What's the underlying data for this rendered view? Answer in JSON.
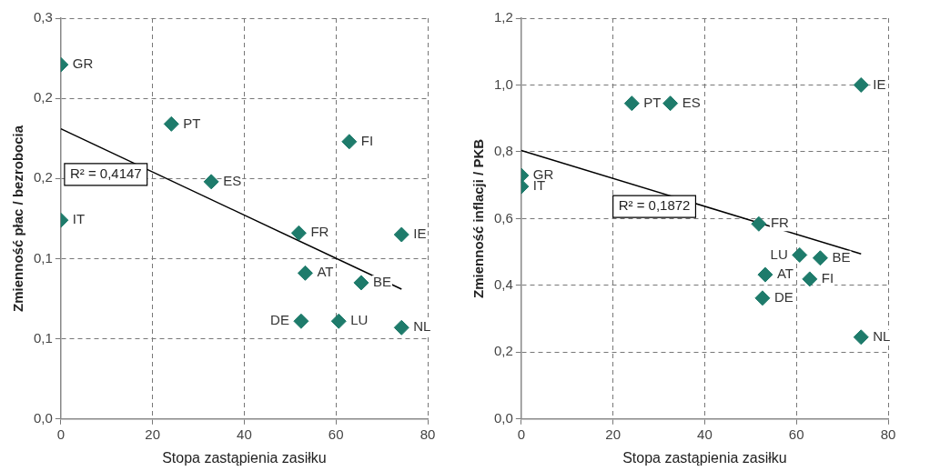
{
  "chart_data": [
    {
      "type": "scatter",
      "xlabel": "Stopa zastąpienia zasiłku",
      "ylabel": "Zmienność płac / bezrobocia",
      "xlim": [
        0,
        80
      ],
      "xticks": [
        0,
        20,
        40,
        60,
        80
      ],
      "ylim": [
        0,
        0.25
      ],
      "yticks": [
        {
          "value": 0,
          "label": "0,0"
        },
        {
          "value": 0.05,
          "label": "0,1"
        },
        {
          "value": 0.1,
          "label": "0,1"
        },
        {
          "value": 0.15,
          "label": "0,2"
        },
        {
          "value": 0.2,
          "label": "0,2"
        },
        {
          "value": 0.25,
          "label": "0,3"
        }
      ],
      "grid": true,
      "series": [
        {
          "marker": "diamond",
          "color": "#1e7b6b",
          "x": [
            0,
            24.1,
            62.9,
            32.8,
            0,
            51.9,
            74.3,
            53.3,
            65.5,
            52.4,
            60.6,
            74.3
          ],
          "values": [
            0.221,
            0.184,
            0.173,
            0.148,
            0.124,
            0.116,
            0.115,
            0.091,
            0.085,
            0.061,
            0.061,
            0.057
          ]
        },
        {
          "type": "line",
          "color": "#000000",
          "x": [
            0,
            74.3
          ],
          "values": [
            0.181,
            0.081
          ]
        }
      ],
      "annotations": [
        {
          "text": "GR",
          "x": 0,
          "y": 0.221
        },
        {
          "text": "PT",
          "x": 24.1,
          "y": 0.184
        },
        {
          "text": "FI",
          "x": 62.9,
          "y": 0.173
        },
        {
          "text": "ES",
          "x": 32.8,
          "y": 0.148
        },
        {
          "text": "IT",
          "x": 0,
          "y": 0.124
        },
        {
          "text": "FR",
          "x": 51.9,
          "y": 0.116
        },
        {
          "text": "IE",
          "x": 74.3,
          "y": 0.115
        },
        {
          "text": "AT",
          "x": 53.3,
          "y": 0.091
        },
        {
          "text": "BE",
          "x": 65.5,
          "y": 0.085
        },
        {
          "text": "DE",
          "x": 52.4,
          "y": 0.061
        },
        {
          "text": "LU",
          "x": 60.6,
          "y": 0.061
        },
        {
          "text": "NL",
          "x": 74.3,
          "y": 0.057
        },
        "R² = 0,4147"
      ]
    },
    {
      "type": "scatter",
      "xlabel": "Stopa zastąpienia zasiłku",
      "ylabel": "Zmienność inflacji / PKB",
      "xlim": [
        0,
        80
      ],
      "xticks": [
        0,
        20,
        40,
        60,
        80
      ],
      "ylim": [
        0,
        1.2
      ],
      "yticks": [
        {
          "value": 0,
          "label": "0,0"
        },
        {
          "value": 0.2,
          "label": "0,2"
        },
        {
          "value": 0.4,
          "label": "0,4"
        },
        {
          "value": 0.6,
          "label": "0,6"
        },
        {
          "value": 0.8,
          "label": "0,8"
        },
        {
          "value": 1,
          "label": "1,0"
        },
        {
          "value": 1.2,
          "label": "1,2"
        }
      ],
      "grid": true,
      "series": [
        {
          "marker": "diamond",
          "color": "#1e7b6b",
          "x": [
            74.1,
            24.1,
            32.5,
            0,
            0,
            51.8,
            60.7,
            65.2,
            53.2,
            62.9,
            52.6,
            74.1
          ],
          "values": [
            1.0,
            0.945,
            0.945,
            0.729,
            0.696,
            0.584,
            0.491,
            0.482,
            0.432,
            0.419,
            0.362,
            0.245
          ]
        },
        {
          "type": "line",
          "color": "#000000",
          "x": [
            0,
            74.1
          ],
          "values": [
            0.804,
            0.494
          ]
        }
      ],
      "annotations": [
        {
          "text": "IE",
          "x": 74.1,
          "y": 1.0
        },
        {
          "text": "PT",
          "x": 24.1,
          "y": 0.945
        },
        {
          "text": "ES",
          "x": 32.5,
          "y": 0.945
        },
        {
          "text": "GR",
          "x": 0,
          "y": 0.729
        },
        {
          "text": "IT",
          "x": 0,
          "y": 0.696
        },
        {
          "text": "FR",
          "x": 51.8,
          "y": 0.584
        },
        {
          "text": "LU",
          "x": 60.7,
          "y": 0.491
        },
        {
          "text": "BE",
          "x": 65.2,
          "y": 0.482
        },
        {
          "text": "AT",
          "x": 53.2,
          "y": 0.432
        },
        {
          "text": "FI",
          "x": 62.9,
          "y": 0.419
        },
        {
          "text": "DE",
          "x": 52.6,
          "y": 0.362
        },
        {
          "text": "NL",
          "x": 74.1,
          "y": 0.245
        },
        "R² = 0,1872"
      ]
    }
  ]
}
